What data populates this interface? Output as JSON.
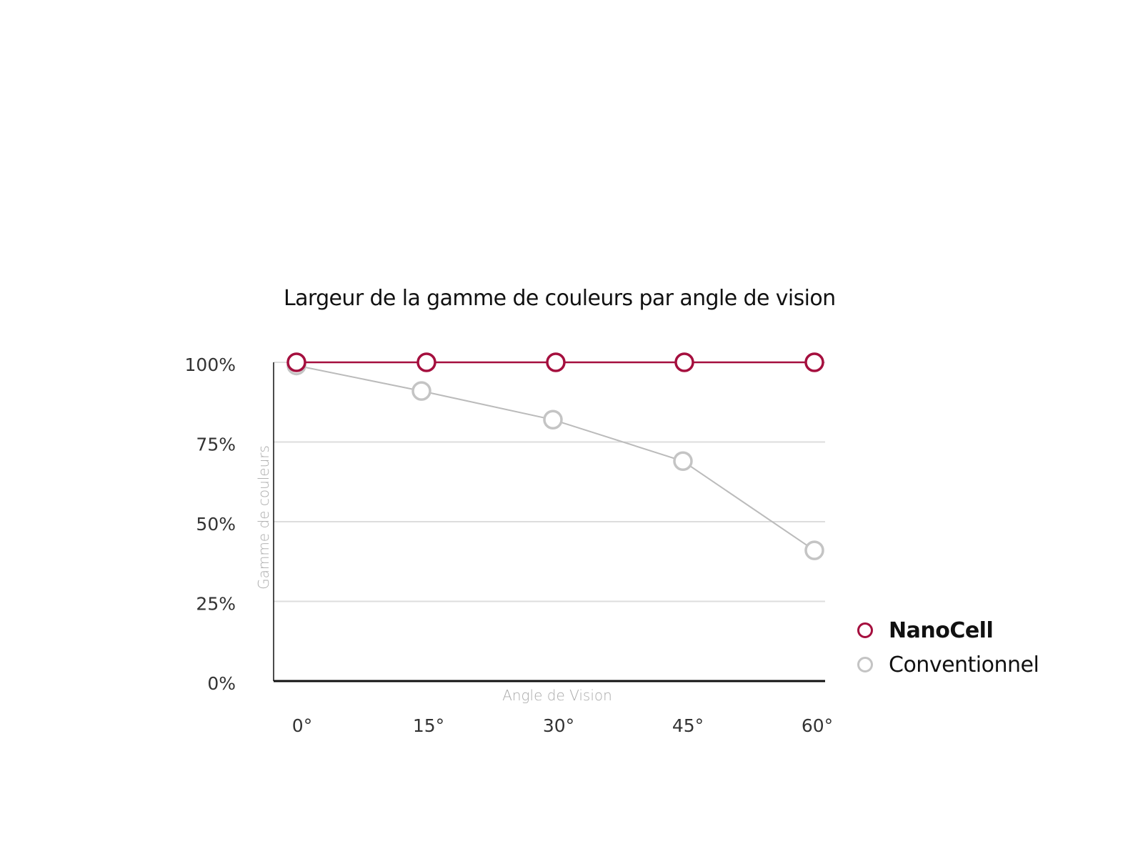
{
  "chart_data": {
    "type": "line",
    "title": "Largeur de la gamme de couleurs par angle de vision",
    "xlabel": "Angle de Vision",
    "ylabel": "Gamme de couleurs",
    "categories": [
      "0°",
      "15°",
      "30°",
      "45°",
      "60°"
    ],
    "y_ticks": [
      "100%",
      "75%",
      "50%",
      "25%",
      "0%"
    ],
    "ylim": [
      0,
      100
    ],
    "grid": true,
    "legend_position": "right-bottom",
    "series": [
      {
        "name": "NanoCell",
        "color": "#a50f3e",
        "values": [
          100,
          100,
          100,
          100,
          100
        ]
      },
      {
        "name": "Conventionnel",
        "color": "#bbbbbb",
        "values": [
          99,
          91,
          82,
          69,
          41
        ]
      }
    ]
  },
  "legend": {
    "items": [
      {
        "label": "NanoCell",
        "color": "#a50f3e",
        "bold": true
      },
      {
        "label": "Conventionnel",
        "color": "#c4c4c4",
        "bold": false
      }
    ]
  }
}
